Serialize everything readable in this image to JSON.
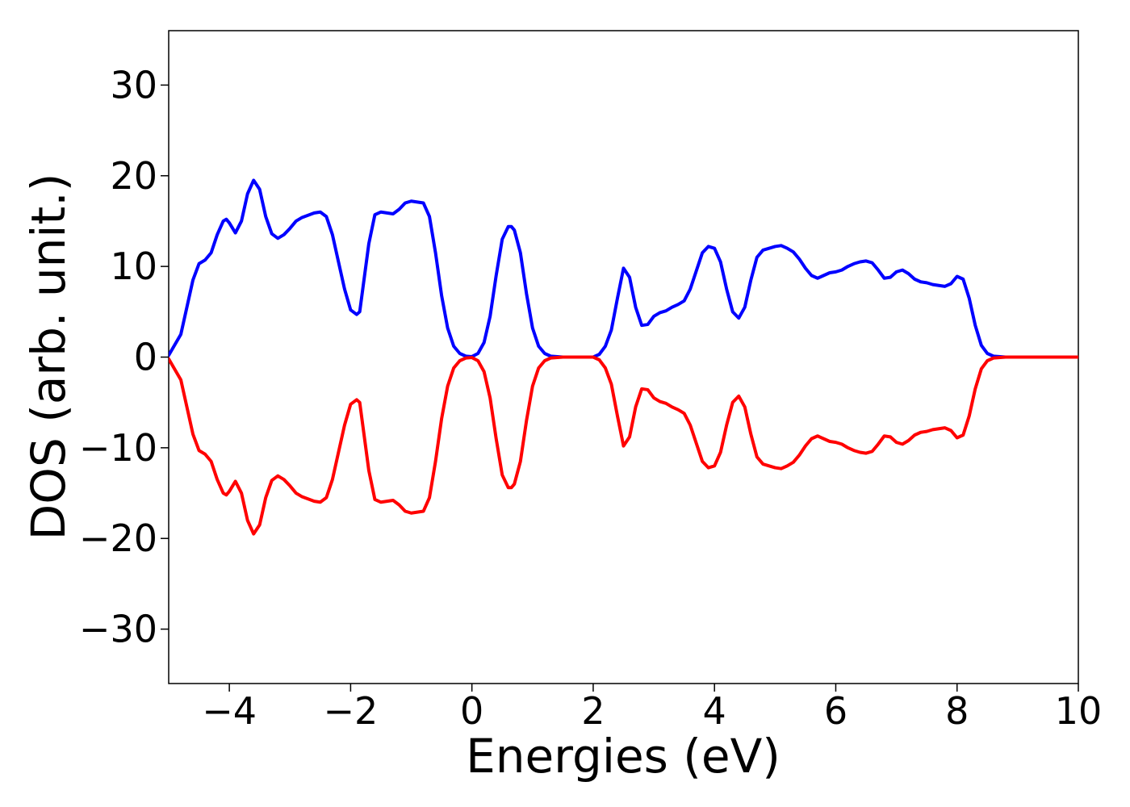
{
  "chart_data": {
    "type": "line",
    "title": "",
    "xlabel": "Energies (eV)",
    "ylabel": "DOS (arb. unit.)",
    "xlim": [
      -5,
      10
    ],
    "ylim": [
      -36,
      36
    ],
    "grid": false,
    "legend": "none",
    "xticks": [
      -4,
      -2,
      0,
      2,
      4,
      6,
      8,
      10
    ],
    "xtick_labels": [
      "−4",
      "−2",
      "0",
      "2",
      "4",
      "6",
      "8",
      "10"
    ],
    "yticks": [
      30,
      20,
      10,
      0,
      -10,
      -20,
      -30
    ],
    "ytick_labels": [
      "30",
      "20",
      "10",
      "0",
      "−10",
      "−20",
      "−30"
    ],
    "series": [
      {
        "color": "#0000ff",
        "x": [
          -5.0,
          -4.8,
          -4.6,
          -4.5,
          -4.4,
          -4.3,
          -4.2,
          -4.1,
          -4.05,
          -4.0,
          -3.9,
          -3.8,
          -3.7,
          -3.6,
          -3.5,
          -3.4,
          -3.3,
          -3.2,
          -3.1,
          -3.0,
          -2.9,
          -2.8,
          -2.6,
          -2.5,
          -2.4,
          -2.3,
          -2.2,
          -2.1,
          -2.0,
          -1.9,
          -1.85,
          -1.8,
          -1.7,
          -1.6,
          -1.5,
          -1.4,
          -1.3,
          -1.2,
          -1.1,
          -1.0,
          -0.9,
          -0.8,
          -0.7,
          -0.6,
          -0.5,
          -0.4,
          -0.3,
          -0.2,
          -0.1,
          0.0,
          0.1,
          0.2,
          0.3,
          0.4,
          0.5,
          0.6,
          0.65,
          0.7,
          0.8,
          0.9,
          1.0,
          1.1,
          1.2,
          1.3,
          1.5,
          2.0,
          2.1,
          2.2,
          2.3,
          2.4,
          2.5,
          2.6,
          2.7,
          2.8,
          2.9,
          3.0,
          3.1,
          3.2,
          3.3,
          3.4,
          3.5,
          3.6,
          3.7,
          3.8,
          3.9,
          4.0,
          4.1,
          4.2,
          4.3,
          4.4,
          4.5,
          4.6,
          4.7,
          4.8,
          4.9,
          5.0,
          5.1,
          5.2,
          5.3,
          5.4,
          5.5,
          5.6,
          5.7,
          5.8,
          5.9,
          6.0,
          6.1,
          6.2,
          6.3,
          6.4,
          6.5,
          6.6,
          6.7,
          6.8,
          6.9,
          7.0,
          7.1,
          7.2,
          7.3,
          7.4,
          7.5,
          7.6,
          7.7,
          7.8,
          7.9,
          8.0,
          8.1,
          8.2,
          8.3,
          8.4,
          8.5,
          8.6,
          8.8,
          9.0,
          10.0
        ],
        "values": [
          0.2,
          2.5,
          8.5,
          10.3,
          10.7,
          11.5,
          13.5,
          15.0,
          15.2,
          14.8,
          13.7,
          15.0,
          18.0,
          19.5,
          18.5,
          15.5,
          13.6,
          13.1,
          13.5,
          14.2,
          15.0,
          15.4,
          15.9,
          16.0,
          15.5,
          13.5,
          10.5,
          7.5,
          5.2,
          4.7,
          5.0,
          7.5,
          12.5,
          15.7,
          16.0,
          15.9,
          15.8,
          16.3,
          17.0,
          17.2,
          17.1,
          17.0,
          15.5,
          11.5,
          6.8,
          3.2,
          1.2,
          0.4,
          0.1,
          0.05,
          0.4,
          1.6,
          4.5,
          9.0,
          13.0,
          14.4,
          14.4,
          14.0,
          11.5,
          7.0,
          3.2,
          1.2,
          0.4,
          0.1,
          0.0,
          0.0,
          0.3,
          1.2,
          3.0,
          6.5,
          9.8,
          8.8,
          5.5,
          3.5,
          3.6,
          4.5,
          4.9,
          5.1,
          5.5,
          5.8,
          6.2,
          7.5,
          9.5,
          11.5,
          12.2,
          12.0,
          10.5,
          7.5,
          5.0,
          4.3,
          5.5,
          8.5,
          11.0,
          11.8,
          12.0,
          12.2,
          12.3,
          12.0,
          11.6,
          10.8,
          9.8,
          9.0,
          8.7,
          9.0,
          9.3,
          9.4,
          9.6,
          10.0,
          10.3,
          10.5,
          10.6,
          10.4,
          9.6,
          8.7,
          8.8,
          9.4,
          9.6,
          9.2,
          8.6,
          8.3,
          8.2,
          8.0,
          7.9,
          7.8,
          8.1,
          8.9,
          8.6,
          6.5,
          3.5,
          1.3,
          0.4,
          0.1,
          0.0,
          0.0,
          0.0
        ]
      },
      {
        "color": "#ff0000",
        "x": [
          -5.0,
          -4.8,
          -4.6,
          -4.5,
          -4.4,
          -4.3,
          -4.2,
          -4.1,
          -4.05,
          -4.0,
          -3.9,
          -3.8,
          -3.7,
          -3.6,
          -3.5,
          -3.4,
          -3.3,
          -3.2,
          -3.1,
          -3.0,
          -2.9,
          -2.8,
          -2.6,
          -2.5,
          -2.4,
          -2.3,
          -2.2,
          -2.1,
          -2.0,
          -1.9,
          -1.85,
          -1.8,
          -1.7,
          -1.6,
          -1.5,
          -1.4,
          -1.3,
          -1.2,
          -1.1,
          -1.0,
          -0.9,
          -0.8,
          -0.7,
          -0.6,
          -0.5,
          -0.4,
          -0.3,
          -0.2,
          -0.1,
          0.0,
          0.1,
          0.2,
          0.3,
          0.4,
          0.5,
          0.6,
          0.65,
          0.7,
          0.8,
          0.9,
          1.0,
          1.1,
          1.2,
          1.3,
          1.5,
          2.0,
          2.1,
          2.2,
          2.3,
          2.4,
          2.5,
          2.6,
          2.7,
          2.8,
          2.9,
          3.0,
          3.1,
          3.2,
          3.3,
          3.4,
          3.5,
          3.6,
          3.7,
          3.8,
          3.9,
          4.0,
          4.1,
          4.2,
          4.3,
          4.4,
          4.5,
          4.6,
          4.7,
          4.8,
          4.9,
          5.0,
          5.1,
          5.2,
          5.3,
          5.4,
          5.5,
          5.6,
          5.7,
          5.8,
          5.9,
          6.0,
          6.1,
          6.2,
          6.3,
          6.4,
          6.5,
          6.6,
          6.7,
          6.8,
          6.9,
          7.0,
          7.1,
          7.2,
          7.3,
          7.4,
          7.5,
          7.6,
          7.7,
          7.8,
          7.9,
          8.0,
          8.1,
          8.2,
          8.3,
          8.4,
          8.5,
          8.6,
          8.8,
          9.0,
          10.0
        ],
        "values": [
          -0.2,
          -2.5,
          -8.5,
          -10.3,
          -10.7,
          -11.5,
          -13.5,
          -15.0,
          -15.2,
          -14.8,
          -13.7,
          -15.0,
          -18.0,
          -19.5,
          -18.5,
          -15.5,
          -13.6,
          -13.1,
          -13.5,
          -14.2,
          -15.0,
          -15.4,
          -15.9,
          -16.0,
          -15.5,
          -13.5,
          -10.5,
          -7.5,
          -5.2,
          -4.7,
          -5.0,
          -7.5,
          -12.5,
          -15.7,
          -16.0,
          -15.9,
          -15.8,
          -16.3,
          -17.0,
          -17.2,
          -17.1,
          -17.0,
          -15.5,
          -11.5,
          -6.8,
          -3.2,
          -1.2,
          -0.4,
          -0.1,
          -0.05,
          -0.4,
          -1.6,
          -4.5,
          -9.0,
          -13.0,
          -14.4,
          -14.4,
          -14.0,
          -11.5,
          -7.0,
          -3.2,
          -1.2,
          -0.4,
          -0.1,
          0.0,
          0.0,
          -0.3,
          -1.2,
          -3.0,
          -6.5,
          -9.8,
          -8.8,
          -5.5,
          -3.5,
          -3.6,
          -4.5,
          -4.9,
          -5.1,
          -5.5,
          -5.8,
          -6.2,
          -7.5,
          -9.5,
          -11.5,
          -12.2,
          -12.0,
          -10.5,
          -7.5,
          -5.0,
          -4.3,
          -5.5,
          -8.5,
          -11.0,
          -11.8,
          -12.0,
          -12.2,
          -12.3,
          -12.0,
          -11.6,
          -10.8,
          -9.8,
          -9.0,
          -8.7,
          -9.0,
          -9.3,
          -9.4,
          -9.6,
          -10.0,
          -10.3,
          -10.5,
          -10.6,
          -10.4,
          -9.6,
          -8.7,
          -8.8,
          -9.4,
          -9.6,
          -9.2,
          -8.6,
          -8.3,
          -8.2,
          -8.0,
          -7.9,
          -7.8,
          -8.1,
          -8.9,
          -8.6,
          -6.5,
          -3.5,
          -1.3,
          -0.4,
          -0.1,
          0.0,
          0.0,
          0.0
        ]
      }
    ]
  }
}
